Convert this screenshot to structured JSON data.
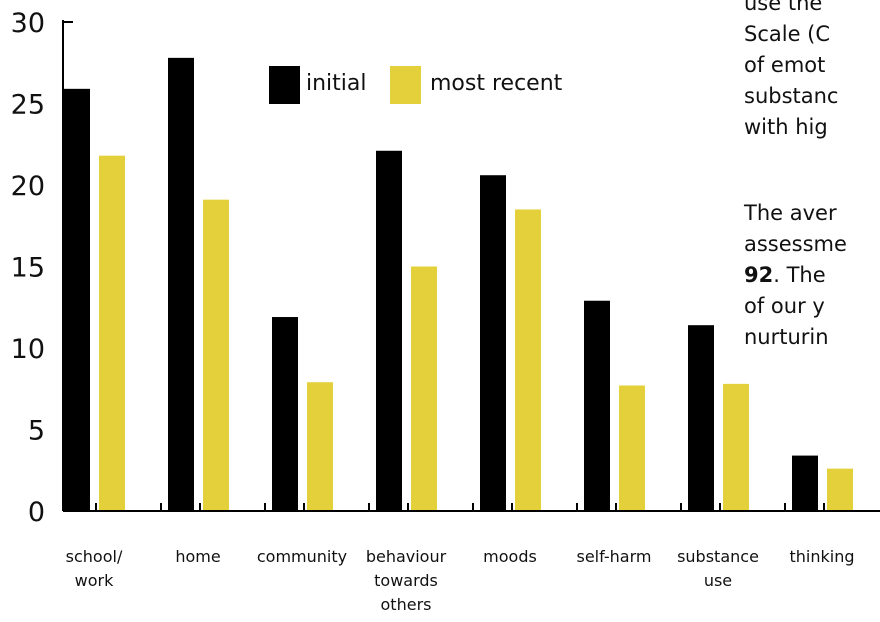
{
  "chart_data": {
    "type": "bar",
    "categories": [
      [
        "school/",
        "work"
      ],
      [
        "home"
      ],
      [
        "community"
      ],
      [
        "behaviour",
        "towards",
        "others"
      ],
      [
        "moods"
      ],
      [
        "self-harm"
      ],
      [
        "substance",
        "use"
      ],
      [
        "thinking"
      ]
    ],
    "series": [
      {
        "name": "initial",
        "color": "#000000",
        "values": [
          25.9,
          27.8,
          11.9,
          22.1,
          20.6,
          12.9,
          11.4,
          3.4
        ]
      },
      {
        "name": "most recent",
        "color": "#e3d03a",
        "values": [
          21.8,
          19.1,
          7.9,
          15.0,
          18.5,
          7.7,
          7.8,
          2.6
        ]
      }
    ],
    "ylim": [
      0,
      30
    ],
    "yticks": [
      0,
      5,
      10,
      15,
      20,
      25,
      30
    ],
    "grid": false,
    "legend_position": "top-center"
  },
  "side_text": {
    "lines_p1": [
      "use the",
      "Scale (C",
      "of emot",
      "substanc",
      "with hig"
    ],
    "lines_p2": [
      "The aver",
      "assessme"
    ],
    "p2_bold": "92",
    "p2_after_bold": ". The",
    "lines_p2_end": [
      "of our y",
      "nurturin"
    ]
  }
}
